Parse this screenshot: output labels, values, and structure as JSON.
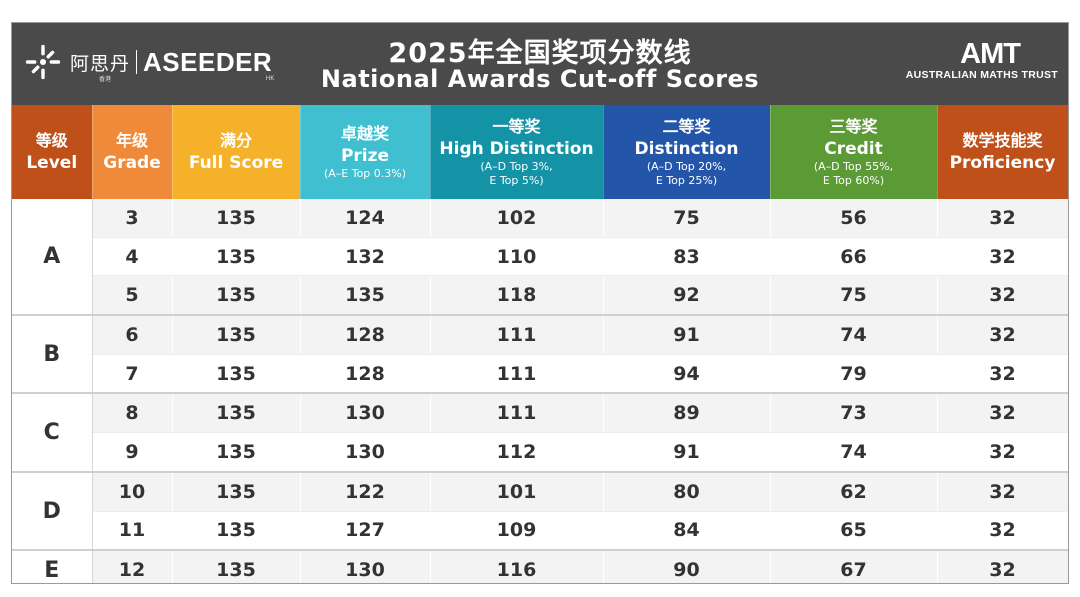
{
  "header": {
    "brand_cn": "阿思丹",
    "brand_en": "ASEEDER",
    "brand_small_left": "香港",
    "brand_small_right": "HK",
    "title_cn": "2025年全国奖项分数线",
    "title_en": "National Awards Cut-off Scores",
    "org_logo": "AMT",
    "org_name": "AUSTRALIAN MATHS TRUST"
  },
  "columns": [
    {
      "cn": "等级",
      "en": "Level",
      "sub": "",
      "color": "#c0501a"
    },
    {
      "cn": "年级",
      "en": "Grade",
      "sub": "",
      "color": "#ee8a3a"
    },
    {
      "cn": "满分",
      "en": "Full Score",
      "sub": "",
      "color": "#f6b12a"
    },
    {
      "cn": "卓越奖",
      "en": "Prize",
      "sub": "(A–E Top 0.3%)",
      "color": "#3fbfcf"
    },
    {
      "cn": "一等奖",
      "en": "High Distinction",
      "sub": "(A–D Top 3%,\nE Top 5%)",
      "color": "#1492a6"
    },
    {
      "cn": "二等奖",
      "en": "Distinction",
      "sub": "(A–D Top 20%,\nE Top 25%)",
      "color": "#2356a8"
    },
    {
      "cn": "三等奖",
      "en": "Credit",
      "sub": "(A–D Top 55%,\nE Top 60%)",
      "color": "#5c9a35"
    },
    {
      "cn": "数学技能奖",
      "en": "Proficiency",
      "sub": "",
      "color": "#c0501a"
    }
  ],
  "groups": [
    {
      "level": "A",
      "rows": [
        [
          "3",
          "135",
          "124",
          "102",
          "75",
          "56",
          "32"
        ],
        [
          "4",
          "135",
          "132",
          "110",
          "83",
          "66",
          "32"
        ],
        [
          "5",
          "135",
          "135",
          "118",
          "92",
          "75",
          "32"
        ]
      ]
    },
    {
      "level": "B",
      "rows": [
        [
          "6",
          "135",
          "128",
          "111",
          "91",
          "74",
          "32"
        ],
        [
          "7",
          "135",
          "128",
          "111",
          "94",
          "79",
          "32"
        ]
      ]
    },
    {
      "level": "C",
      "rows": [
        [
          "8",
          "135",
          "130",
          "111",
          "89",
          "73",
          "32"
        ],
        [
          "9",
          "135",
          "130",
          "112",
          "91",
          "74",
          "32"
        ]
      ]
    },
    {
      "level": "D",
      "rows": [
        [
          "10",
          "135",
          "122",
          "101",
          "80",
          "62",
          "32"
        ],
        [
          "11",
          "135",
          "127",
          "109",
          "84",
          "65",
          "32"
        ]
      ]
    },
    {
      "level": "E",
      "rows": [
        [
          "12",
          "135",
          "130",
          "116",
          "90",
          "67",
          "32"
        ]
      ]
    }
  ],
  "icons": {
    "brand": "aseeder-star-logo-icon"
  }
}
